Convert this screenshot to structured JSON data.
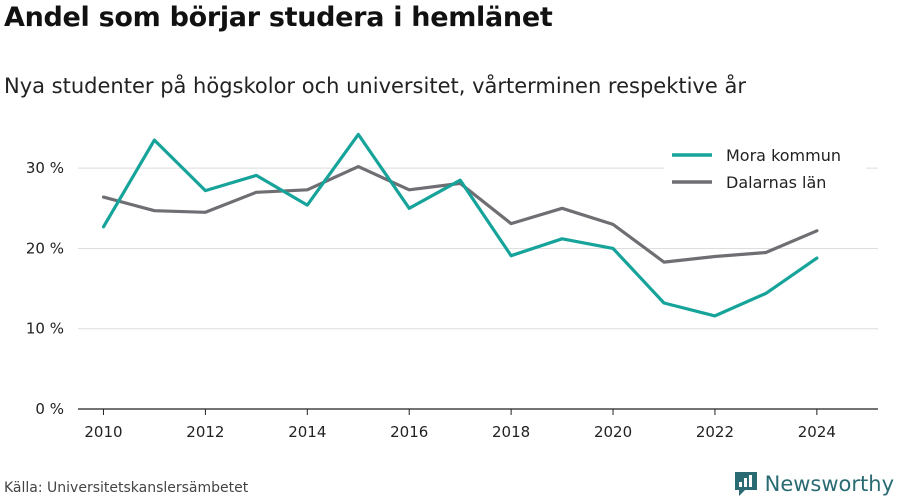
{
  "title": "Andel som börjar studera i hemlänet",
  "subtitle": "Nya studenter på högskolor och universitet, vårterminen respektive år",
  "source": "Källa: Universitetskanslersämbetet",
  "brand": "Newsworthy",
  "chart_data": {
    "type": "line",
    "x": [
      2010,
      2011,
      2012,
      2013,
      2014,
      2015,
      2016,
      2017,
      2018,
      2019,
      2020,
      2021,
      2022,
      2023,
      2024
    ],
    "x_ticks": [
      2010,
      2012,
      2014,
      2016,
      2018,
      2020,
      2022,
      2024
    ],
    "y_ticks": [
      0,
      10,
      20,
      30
    ],
    "y_tick_labels": [
      "0 %",
      "10 %",
      "20 %",
      "30 %"
    ],
    "ylim": [
      0,
      36
    ],
    "grid": true,
    "legend_position": "top-right",
    "series": [
      {
        "name": "Mora kommun",
        "color": "#16a39a",
        "values": [
          22.7,
          33.5,
          27.2,
          29.1,
          25.4,
          34.2,
          25.0,
          28.5,
          19.1,
          21.2,
          20.0,
          13.2,
          11.6,
          14.4,
          18.8
        ]
      },
      {
        "name": "Dalarnas län",
        "color": "#6f6e72",
        "values": [
          26.4,
          24.7,
          24.5,
          27.0,
          27.3,
          30.2,
          27.3,
          28.1,
          23.1,
          25.0,
          23.0,
          18.3,
          19.0,
          19.5,
          22.2
        ]
      }
    ]
  }
}
